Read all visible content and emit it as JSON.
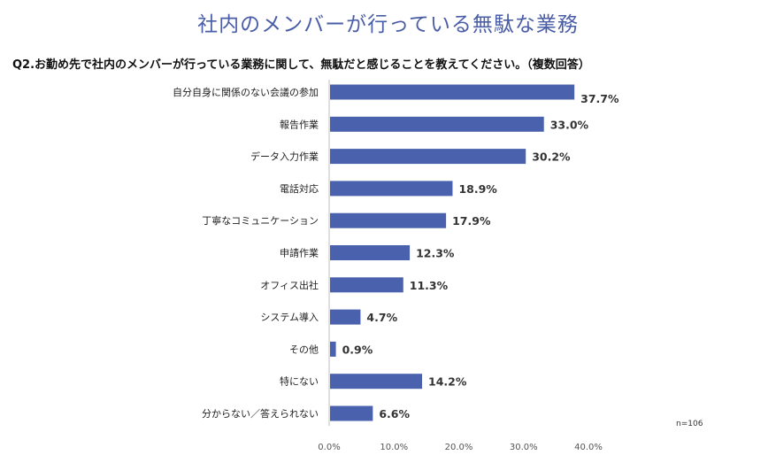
{
  "chart_data": {
    "type": "bar",
    "orientation": "horizontal",
    "title": "社内のメンバーが行っている無駄な業務",
    "subtitle": "Q2.お勤め先で社内のメンバーが行っている業務に関して、無駄だと感じることを教えてください。（複数回答）",
    "categories": [
      "自分自身に関係のない会議の参加",
      "報告作業",
      "データ入力作業",
      "電話対応",
      "丁寧なコミュニケーション",
      "申請作業",
      "オフィス出社",
      "システム導入",
      "その他",
      "特にない",
      "分からない／答えられない"
    ],
    "values": [
      37.7,
      33.0,
      30.2,
      18.9,
      17.9,
      12.3,
      11.3,
      4.7,
      0.9,
      14.2,
      6.6
    ],
    "value_labels": [
      "37.7%",
      "33.0%",
      "30.2%",
      "18.9%",
      "17.9%",
      "12.3%",
      "11.3%",
      "4.7%",
      "0.9%",
      "14.2%",
      "6.6%"
    ],
    "xlim": [
      0,
      40
    ],
    "xticks": [
      "0.0%",
      "10.0%",
      "20.0%",
      "30.0%",
      "40.0%"
    ],
    "xtick_values": [
      0,
      10,
      20,
      30,
      40
    ],
    "bar_color": "#4a62ad",
    "note": "n=106"
  }
}
